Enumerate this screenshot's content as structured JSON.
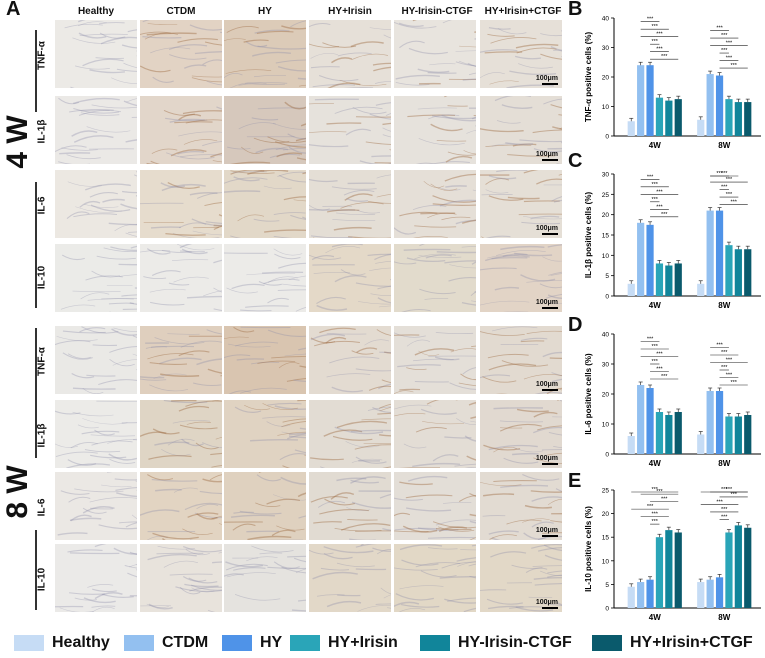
{
  "panels": {
    "A": "A",
    "B": "B",
    "C": "C",
    "D": "D",
    "E": "E"
  },
  "groups": [
    "Healthy",
    "CTDM",
    "HY",
    "HY+Irisin",
    "HY-Irisin-CTGF",
    "HY+Irisin+CTGF"
  ],
  "group_colors": [
    "#c6dcf5",
    "#93c0f0",
    "#4f93e8",
    "#2aa5b8",
    "#11859a",
    "#0a5a6c"
  ],
  "weeks": [
    "4 W",
    "8 W"
  ],
  "rows": [
    "TNF-α",
    "IL-1β",
    "IL-6",
    "IL-10"
  ],
  "scale_label": "100μm",
  "tile_tints": [
    [
      "#eceae6",
      "#e2d3c4",
      "#dccbb8",
      "#e6e0d8",
      "#e8e4de",
      "#e6e0d8"
    ],
    [
      "#ebe9e6",
      "#e2d6ca",
      "#d6c8bc",
      "#e6e2dc",
      "#e6e2dc",
      "#e4ded6"
    ],
    [
      "#ece8e2",
      "#e6dccd",
      "#e2d8c8",
      "#e4ded5",
      "#e5dfd7",
      "#e5dfd6"
    ],
    [
      "#ebebe8",
      "#ecebe8",
      "#ecebe8",
      "#e4d9c8",
      "#e2dbcc",
      "#e2d4c6"
    ],
    [
      "#eae9e6",
      "#dfcfbe",
      "#d9c5b0",
      "#e3dbd1",
      "#e4dfd8",
      "#e2dad0"
    ],
    [
      "#ecebe8",
      "#dfd5c5",
      "#e0d3c2",
      "#e2dcd3",
      "#e3ddd5",
      "#e1d9d0"
    ],
    [
      "#ebe8e4",
      "#e2d4c2",
      "#dfd1bf",
      "#e1dbd2",
      "#e3ded7",
      "#e2dbd2"
    ],
    [
      "#ebeae8",
      "#e8e3dc",
      "#e5e3df",
      "#e2d8c8",
      "#e2d8c6",
      "#e2d8c7"
    ]
  ],
  "chart_data": [
    {
      "type": "bar",
      "panel": "B",
      "ylabel": "TNF-α positive cells (%)",
      "ylim": [
        0,
        40
      ],
      "yticks": [
        "0",
        "10",
        "20",
        "30",
        "40"
      ],
      "categories": [
        "4W",
        "8W"
      ],
      "series": [
        {
          "name": "Healthy",
          "values": [
            5.0,
            5.5
          ]
        },
        {
          "name": "CTDM",
          "values": [
            24.0,
            21.0
          ]
        },
        {
          "name": "HY",
          "values": [
            24.0,
            20.5
          ]
        },
        {
          "name": "HY+Irisin",
          "values": [
            13.0,
            12.5
          ]
        },
        {
          "name": "HY-Irisin-CTGF",
          "values": [
            12.0,
            11.5
          ]
        },
        {
          "name": "HY+Irisin+CTGF",
          "values": [
            12.5,
            11.5
          ]
        }
      ],
      "significance": "***"
    },
    {
      "type": "bar",
      "panel": "C",
      "ylabel": "IL-1β positive cells (%)",
      "ylim": [
        0,
        30
      ],
      "yticks": [
        "0",
        "5",
        "10",
        "15",
        "20",
        "25",
        "30"
      ],
      "categories": [
        "4W",
        "8W"
      ],
      "series": [
        {
          "name": "Healthy",
          "values": [
            3.0,
            3.0
          ]
        },
        {
          "name": "CTDM",
          "values": [
            18.0,
            21.0
          ]
        },
        {
          "name": "HY",
          "values": [
            17.5,
            21.0
          ]
        },
        {
          "name": "HY+Irisin",
          "values": [
            8.0,
            12.5
          ]
        },
        {
          "name": "HY-Irisin-CTGF",
          "values": [
            7.5,
            11.5
          ]
        },
        {
          "name": "HY+Irisin+CTGF",
          "values": [
            8.0,
            11.5
          ]
        }
      ],
      "significance": "***"
    },
    {
      "type": "bar",
      "panel": "D",
      "ylabel": "IL-6 positive cells (%)",
      "ylim": [
        0,
        40
      ],
      "yticks": [
        "0",
        "10",
        "20",
        "30",
        "40"
      ],
      "categories": [
        "4W",
        "8W"
      ],
      "series": [
        {
          "name": "Healthy",
          "values": [
            6.0,
            6.5
          ]
        },
        {
          "name": "CTDM",
          "values": [
            23.0,
            21.0
          ]
        },
        {
          "name": "HY",
          "values": [
            22.0,
            21.0
          ]
        },
        {
          "name": "HY+Irisin",
          "values": [
            14.0,
            12.5
          ]
        },
        {
          "name": "HY-Irisin-CTGF",
          "values": [
            13.0,
            12.5
          ]
        },
        {
          "name": "HY+Irisin+CTGF",
          "values": [
            14.0,
            13.0
          ]
        }
      ],
      "significance": "***"
    },
    {
      "type": "bar",
      "panel": "E",
      "ylabel": "IL-10 positive cells (%)",
      "ylim": [
        0,
        25
      ],
      "yticks": [
        "0",
        "5",
        "10",
        "15",
        "20",
        "25"
      ],
      "categories": [
        "4W",
        "8W"
      ],
      "series": [
        {
          "name": "Healthy",
          "values": [
            4.5,
            5.5
          ]
        },
        {
          "name": "CTDM",
          "values": [
            5.5,
            6.0
          ]
        },
        {
          "name": "HY",
          "values": [
            6.0,
            6.5
          ]
        },
        {
          "name": "HY+Irisin",
          "values": [
            15.0,
            16.0
          ]
        },
        {
          "name": "HY-Irisin-CTGF",
          "values": [
            16.5,
            17.5
          ]
        },
        {
          "name": "HY+Irisin+CTGF",
          "values": [
            16.0,
            17.0
          ]
        }
      ],
      "significance": "***"
    }
  ]
}
